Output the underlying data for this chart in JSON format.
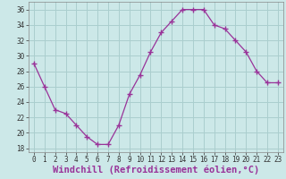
{
  "x": [
    0,
    1,
    2,
    3,
    4,
    5,
    6,
    7,
    8,
    9,
    10,
    11,
    12,
    13,
    14,
    15,
    16,
    17,
    18,
    19,
    20,
    21,
    22,
    23
  ],
  "y": [
    29,
    26,
    23,
    22.5,
    21,
    19.5,
    18.5,
    18.5,
    21,
    25,
    27.5,
    30.5,
    33,
    34.5,
    36,
    36,
    36,
    34,
    33.5,
    32,
    30.5,
    28,
    26.5,
    26.5
  ],
  "line_color": "#993399",
  "marker": "+",
  "marker_size": 5,
  "bg_color": "#cce8e8",
  "grid_color": "#aacece",
  "xlabel": "Windchill (Refroidissement éolien,°C)",
  "xlabel_color": "#993399",
  "ylim": [
    17.5,
    37
  ],
  "xlim": [
    -0.5,
    23.5
  ],
  "yticks": [
    18,
    20,
    22,
    24,
    26,
    28,
    30,
    32,
    34,
    36
  ],
  "xticks": [
    0,
    1,
    2,
    3,
    4,
    5,
    6,
    7,
    8,
    9,
    10,
    11,
    12,
    13,
    14,
    15,
    16,
    17,
    18,
    19,
    20,
    21,
    22,
    23
  ],
  "tick_label_size": 5.5,
  "xlabel_size": 7.5
}
